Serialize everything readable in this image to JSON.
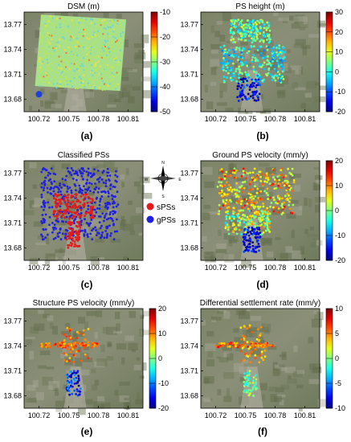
{
  "chart_data": [
    {
      "type": "heatmap",
      "panel": "(a)",
      "title": "DSM (m)",
      "map_kind": "dsm",
      "xticks": [
        "100.72",
        "100.75",
        "100.78",
        "100.81"
      ],
      "yticks": [
        "13.77",
        "13.74",
        "13.71",
        "13.68"
      ],
      "xlim": [
        100.705,
        100.825
      ],
      "ylim": [
        13.665,
        13.785
      ],
      "colorbar": {
        "ticks": [
          "-10",
          "-20",
          "-30",
          "-40",
          "-50"
        ],
        "range": [
          -50,
          -10
        ]
      },
      "point_sets": []
    },
    {
      "type": "scatter",
      "panel": "(b)",
      "title": "PS height (m)",
      "map_kind": "ps",
      "xticks": [
        "100.72",
        "100.75",
        "100.78",
        "100.81"
      ],
      "yticks": [
        "13.77",
        "13.74",
        "13.71",
        "13.68"
      ],
      "xlim": [
        100.705,
        100.825
      ],
      "ylim": [
        13.665,
        13.785
      ],
      "colorbar": {
        "ticks": [
          "30",
          "20",
          "10",
          "0",
          "-10",
          "-20"
        ],
        "range": [
          -20,
          30
        ]
      },
      "point_sets": [
        {
          "lon": [
            100.735,
            100.775
          ],
          "lat": [
            13.748,
            13.776
          ],
          "n": 180,
          "values": [
            -5,
            10
          ]
        },
        {
          "lon": [
            100.725,
            100.79
          ],
          "lat": [
            13.7,
            13.745
          ],
          "n": 260,
          "values": [
            -8,
            8
          ]
        },
        {
          "lon": [
            100.742,
            100.765
          ],
          "lat": [
            13.678,
            13.705
          ],
          "n": 70,
          "values": [
            -20,
            -8
          ]
        }
      ]
    },
    {
      "type": "scatter",
      "panel": "(c)",
      "title": "Classified PSs",
      "map_kind": "classified",
      "xticks": [
        "100.72",
        "100.75",
        "100.78",
        "100.81"
      ],
      "yticks": [
        "13.77",
        "13.74",
        "13.71",
        "13.68"
      ],
      "xlim": [
        100.705,
        100.825
      ],
      "ylim": [
        13.665,
        13.785
      ],
      "legend": {
        "items": [
          {
            "label": "sPSs",
            "color": "#e41a1c"
          },
          {
            "label": "gPSs",
            "color": "#1f1fe0"
          }
        ],
        "compass": [
          "N",
          "S",
          "E",
          "W"
        ]
      },
      "point_sets": [
        {
          "class": "gPSs",
          "lon": [
            100.722,
            100.8
          ],
          "lat": [
            13.69,
            13.776
          ],
          "n": 420
        },
        {
          "class": "sPSs",
          "lon": [
            100.735,
            100.775
          ],
          "lat": [
            13.715,
            13.745
          ],
          "n": 150
        },
        {
          "class": "sPSs",
          "lon": [
            100.748,
            100.762
          ],
          "lat": [
            13.68,
            13.712
          ],
          "n": 70
        }
      ]
    },
    {
      "type": "scatter",
      "panel": "(d)",
      "title": "Ground PS velocity (mm/y)",
      "map_kind": "ps",
      "xticks": [
        "100.72",
        "100.75",
        "100.78",
        "100.81"
      ],
      "yticks": [
        "13.77",
        "13.74",
        "13.71",
        "13.68"
      ],
      "xlim": [
        100.705,
        100.825
      ],
      "ylim": [
        13.665,
        13.785
      ],
      "colorbar": {
        "ticks": [
          "20",
          "10",
          "0",
          "-10",
          "-20"
        ],
        "range": [
          -20,
          20
        ]
      },
      "point_sets": [
        {
          "lon": [
            100.722,
            100.8
          ],
          "lat": [
            13.72,
            13.776
          ],
          "n": 300,
          "values": [
            0,
            15
          ]
        },
        {
          "lon": [
            100.73,
            100.775
          ],
          "lat": [
            13.695,
            13.725
          ],
          "n": 160,
          "values": [
            -6,
            10
          ]
        },
        {
          "lon": [
            100.748,
            100.765
          ],
          "lat": [
            13.675,
            13.705
          ],
          "n": 90,
          "values": [
            -20,
            -12
          ]
        }
      ]
    },
    {
      "type": "scatter",
      "panel": "(e)",
      "title": "Structure PS velocity (mm/y)",
      "map_kind": "ps",
      "xticks": [
        "100.72",
        "100.75",
        "100.78",
        "100.81"
      ],
      "yticks": [
        "13.77",
        "13.74",
        "13.71",
        "13.68"
      ],
      "xlim": [
        100.705,
        100.825
      ],
      "ylim": [
        13.665,
        13.785
      ],
      "colorbar": {
        "ticks": [
          "20",
          "10",
          "0",
          "-10",
          "-20"
        ],
        "range": [
          -20,
          20
        ]
      },
      "point_sets": [
        {
          "lon": [
            100.72,
            100.78
          ],
          "lat": [
            13.738,
            13.744
          ],
          "n": 70,
          "values": [
            8,
            15
          ]
        },
        {
          "lon": [
            100.745,
            100.77
          ],
          "lat": [
            13.72,
            13.765
          ],
          "n": 60,
          "values": [
            6,
            14
          ]
        },
        {
          "lon": [
            100.748,
            100.762
          ],
          "lat": [
            13.68,
            13.71
          ],
          "n": 60,
          "values": [
            -20,
            -8
          ]
        }
      ]
    },
    {
      "type": "scatter",
      "panel": "(f)",
      "title": "Differential settlement rate (mm/y)",
      "map_kind": "ps",
      "xticks": [
        "100.72",
        "100.75",
        "100.78",
        "100.81"
      ],
      "yticks": [
        "13.77",
        "13.74",
        "13.71",
        "13.68"
      ],
      "xlim": [
        100.705,
        100.825
      ],
      "ylim": [
        13.665,
        13.785
      ],
      "colorbar": {
        "ticks": [
          "10",
          "5",
          "0",
          "-5",
          "-10"
        ],
        "range": [
          -10,
          10
        ]
      },
      "point_sets": [
        {
          "lon": [
            100.72,
            100.78
          ],
          "lat": [
            13.738,
            13.744
          ],
          "n": 70,
          "values": [
            3,
            8
          ]
        },
        {
          "lon": [
            100.745,
            100.77
          ],
          "lat": [
            13.72,
            13.765
          ],
          "n": 60,
          "values": [
            2,
            6
          ]
        },
        {
          "lon": [
            100.748,
            100.762
          ],
          "lat": [
            13.68,
            13.71
          ],
          "n": 60,
          "values": [
            -3,
            2
          ]
        }
      ]
    }
  ]
}
